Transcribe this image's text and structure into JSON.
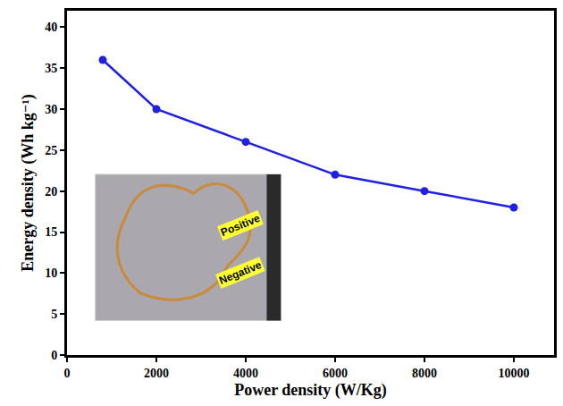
{
  "chart_data": {
    "type": "line",
    "x_label": "Power density (W/Kg)",
    "y_label": "Energy density (Wh kg⁻¹)",
    "x": [
      800,
      2000,
      4000,
      6000,
      8000,
      10000
    ],
    "values": [
      36,
      30,
      26,
      22,
      20,
      18
    ],
    "color": "#1f1fe6",
    "marker": "circle",
    "line_style": "solid",
    "xlim": [
      0,
      10900
    ],
    "xticks": [
      0,
      2000,
      4000,
      6000,
      8000,
      10000
    ],
    "ylim": [
      0,
      42
    ],
    "yticks": [
      0,
      5,
      10,
      15,
      20,
      25,
      30,
      35,
      40
    ],
    "grid": false,
    "annotations": [
      "Positive",
      "Negative"
    ]
  }
}
